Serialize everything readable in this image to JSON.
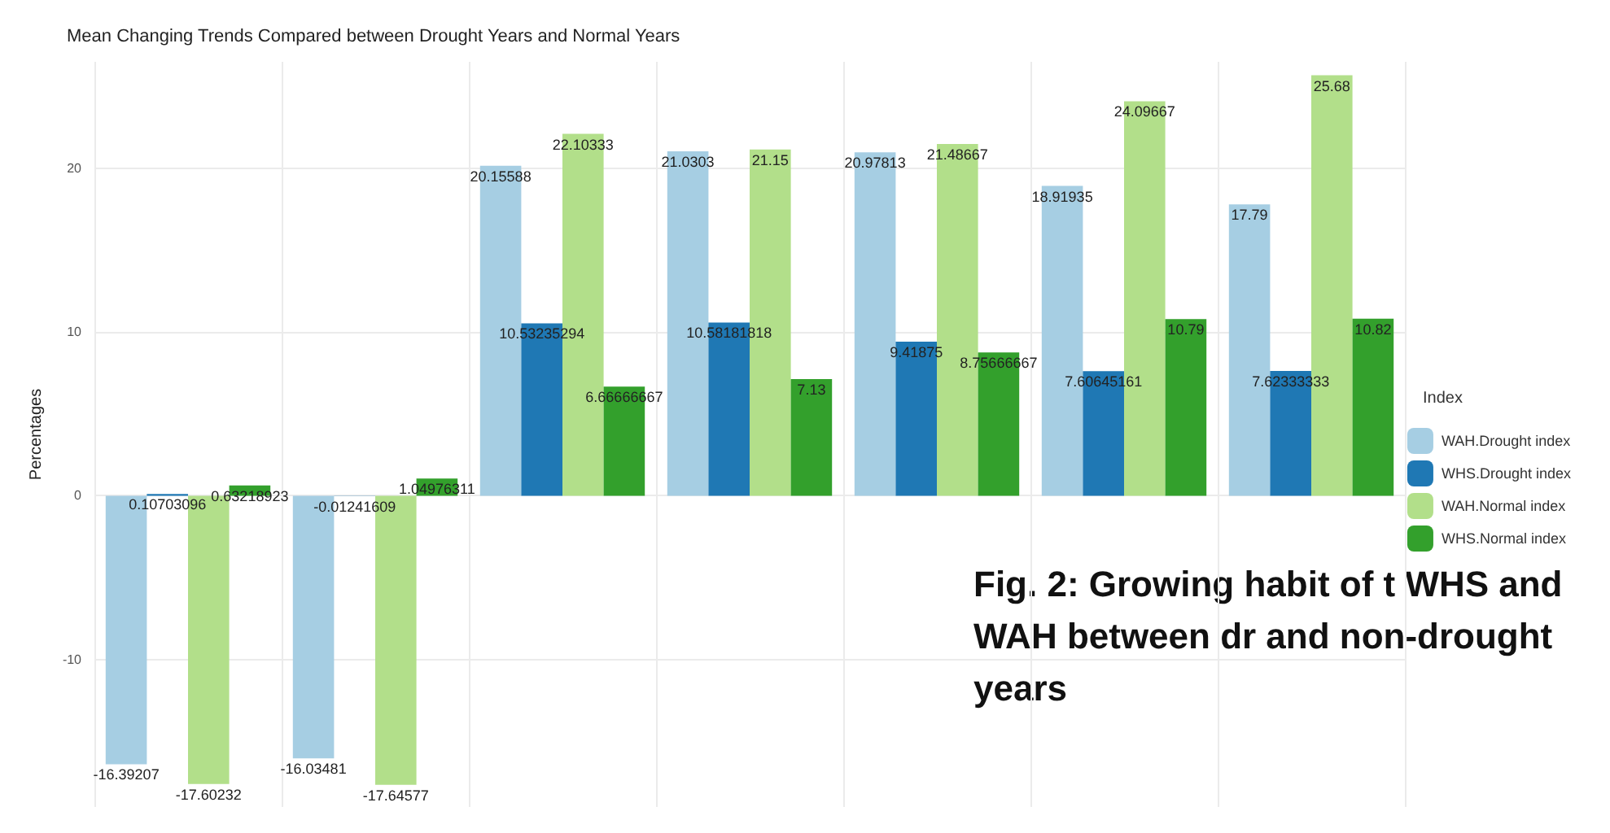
{
  "chart_data": {
    "type": "bar",
    "title": "Mean Changing Trends Compared between Drought Years and Normal Years",
    "ylabel": "Percentages",
    "legend_title": "Index",
    "legend": "right",
    "categories": [
      null,
      null,
      null,
      null,
      null,
      null,
      null
    ],
    "series": [
      {
        "name": "WAH.Drought index",
        "color": "#a6cee3",
        "values": [
          -16.39207,
          -16.03481,
          20.15588,
          21.0303,
          20.97813,
          18.91935,
          17.79
        ]
      },
      {
        "name": "WHS.Drought index",
        "color": "#1f78b4",
        "values": [
          0.10703096,
          -0.01241609,
          10.53235294,
          10.58181818,
          9.41875,
          7.60645161,
          7.62333333
        ]
      },
      {
        "name": "WAH.Normal index",
        "color": "#b2df8a",
        "values": [
          -17.60232,
          -17.64577,
          22.10333,
          21.15,
          21.48667,
          24.09667,
          25.68
        ]
      },
      {
        "name": "WHS.Normal index",
        "color": "#33a02c",
        "values": [
          0.63218923,
          1.04976311,
          6.66666667,
          7.13,
          8.75666667,
          10.79,
          10.82
        ]
      }
    ],
    "ylim": [
      -19,
      26.5
    ],
    "yticks": [
      -10,
      0,
      10,
      20
    ],
    "grid": true,
    "data_labels": true,
    "annotations": [
      "Fig. 2: Growing habit of t WHS and WAH between dr and non-drought years"
    ]
  }
}
